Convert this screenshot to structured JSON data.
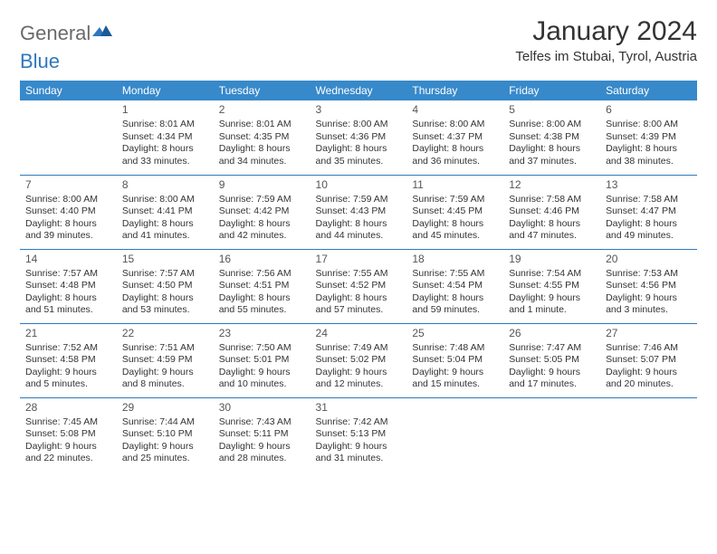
{
  "brand": {
    "part1": "General",
    "part2": "Blue"
  },
  "title": "January 2024",
  "subtitle": "Telfes im Stubai, Tyrol, Austria",
  "colors": {
    "header_bg": "#3789ca",
    "header_text": "#ffffff",
    "rule": "#2f78bd",
    "body_text": "#333333",
    "logo_gray": "#6a6a6a",
    "logo_blue": "#2f78bd",
    "page_bg": "#ffffff"
  },
  "weekdays": [
    "Sunday",
    "Monday",
    "Tuesday",
    "Wednesday",
    "Thursday",
    "Friday",
    "Saturday"
  ],
  "weeks": [
    [
      null,
      {
        "n": "1",
        "sr": "Sunrise: 8:01 AM",
        "ss": "Sunset: 4:34 PM",
        "d1": "Daylight: 8 hours",
        "d2": "and 33 minutes."
      },
      {
        "n": "2",
        "sr": "Sunrise: 8:01 AM",
        "ss": "Sunset: 4:35 PM",
        "d1": "Daylight: 8 hours",
        "d2": "and 34 minutes."
      },
      {
        "n": "3",
        "sr": "Sunrise: 8:00 AM",
        "ss": "Sunset: 4:36 PM",
        "d1": "Daylight: 8 hours",
        "d2": "and 35 minutes."
      },
      {
        "n": "4",
        "sr": "Sunrise: 8:00 AM",
        "ss": "Sunset: 4:37 PM",
        "d1": "Daylight: 8 hours",
        "d2": "and 36 minutes."
      },
      {
        "n": "5",
        "sr": "Sunrise: 8:00 AM",
        "ss": "Sunset: 4:38 PM",
        "d1": "Daylight: 8 hours",
        "d2": "and 37 minutes."
      },
      {
        "n": "6",
        "sr": "Sunrise: 8:00 AM",
        "ss": "Sunset: 4:39 PM",
        "d1": "Daylight: 8 hours",
        "d2": "and 38 minutes."
      }
    ],
    [
      {
        "n": "7",
        "sr": "Sunrise: 8:00 AM",
        "ss": "Sunset: 4:40 PM",
        "d1": "Daylight: 8 hours",
        "d2": "and 39 minutes."
      },
      {
        "n": "8",
        "sr": "Sunrise: 8:00 AM",
        "ss": "Sunset: 4:41 PM",
        "d1": "Daylight: 8 hours",
        "d2": "and 41 minutes."
      },
      {
        "n": "9",
        "sr": "Sunrise: 7:59 AM",
        "ss": "Sunset: 4:42 PM",
        "d1": "Daylight: 8 hours",
        "d2": "and 42 minutes."
      },
      {
        "n": "10",
        "sr": "Sunrise: 7:59 AM",
        "ss": "Sunset: 4:43 PM",
        "d1": "Daylight: 8 hours",
        "d2": "and 44 minutes."
      },
      {
        "n": "11",
        "sr": "Sunrise: 7:59 AM",
        "ss": "Sunset: 4:45 PM",
        "d1": "Daylight: 8 hours",
        "d2": "and 45 minutes."
      },
      {
        "n": "12",
        "sr": "Sunrise: 7:58 AM",
        "ss": "Sunset: 4:46 PM",
        "d1": "Daylight: 8 hours",
        "d2": "and 47 minutes."
      },
      {
        "n": "13",
        "sr": "Sunrise: 7:58 AM",
        "ss": "Sunset: 4:47 PM",
        "d1": "Daylight: 8 hours",
        "d2": "and 49 minutes."
      }
    ],
    [
      {
        "n": "14",
        "sr": "Sunrise: 7:57 AM",
        "ss": "Sunset: 4:48 PM",
        "d1": "Daylight: 8 hours",
        "d2": "and 51 minutes."
      },
      {
        "n": "15",
        "sr": "Sunrise: 7:57 AM",
        "ss": "Sunset: 4:50 PM",
        "d1": "Daylight: 8 hours",
        "d2": "and 53 minutes."
      },
      {
        "n": "16",
        "sr": "Sunrise: 7:56 AM",
        "ss": "Sunset: 4:51 PM",
        "d1": "Daylight: 8 hours",
        "d2": "and 55 minutes."
      },
      {
        "n": "17",
        "sr": "Sunrise: 7:55 AM",
        "ss": "Sunset: 4:52 PM",
        "d1": "Daylight: 8 hours",
        "d2": "and 57 minutes."
      },
      {
        "n": "18",
        "sr": "Sunrise: 7:55 AM",
        "ss": "Sunset: 4:54 PM",
        "d1": "Daylight: 8 hours",
        "d2": "and 59 minutes."
      },
      {
        "n": "19",
        "sr": "Sunrise: 7:54 AM",
        "ss": "Sunset: 4:55 PM",
        "d1": "Daylight: 9 hours",
        "d2": "and 1 minute."
      },
      {
        "n": "20",
        "sr": "Sunrise: 7:53 AM",
        "ss": "Sunset: 4:56 PM",
        "d1": "Daylight: 9 hours",
        "d2": "and 3 minutes."
      }
    ],
    [
      {
        "n": "21",
        "sr": "Sunrise: 7:52 AM",
        "ss": "Sunset: 4:58 PM",
        "d1": "Daylight: 9 hours",
        "d2": "and 5 minutes."
      },
      {
        "n": "22",
        "sr": "Sunrise: 7:51 AM",
        "ss": "Sunset: 4:59 PM",
        "d1": "Daylight: 9 hours",
        "d2": "and 8 minutes."
      },
      {
        "n": "23",
        "sr": "Sunrise: 7:50 AM",
        "ss": "Sunset: 5:01 PM",
        "d1": "Daylight: 9 hours",
        "d2": "and 10 minutes."
      },
      {
        "n": "24",
        "sr": "Sunrise: 7:49 AM",
        "ss": "Sunset: 5:02 PM",
        "d1": "Daylight: 9 hours",
        "d2": "and 12 minutes."
      },
      {
        "n": "25",
        "sr": "Sunrise: 7:48 AM",
        "ss": "Sunset: 5:04 PM",
        "d1": "Daylight: 9 hours",
        "d2": "and 15 minutes."
      },
      {
        "n": "26",
        "sr": "Sunrise: 7:47 AM",
        "ss": "Sunset: 5:05 PM",
        "d1": "Daylight: 9 hours",
        "d2": "and 17 minutes."
      },
      {
        "n": "27",
        "sr": "Sunrise: 7:46 AM",
        "ss": "Sunset: 5:07 PM",
        "d1": "Daylight: 9 hours",
        "d2": "and 20 minutes."
      }
    ],
    [
      {
        "n": "28",
        "sr": "Sunrise: 7:45 AM",
        "ss": "Sunset: 5:08 PM",
        "d1": "Daylight: 9 hours",
        "d2": "and 22 minutes."
      },
      {
        "n": "29",
        "sr": "Sunrise: 7:44 AM",
        "ss": "Sunset: 5:10 PM",
        "d1": "Daylight: 9 hours",
        "d2": "and 25 minutes."
      },
      {
        "n": "30",
        "sr": "Sunrise: 7:43 AM",
        "ss": "Sunset: 5:11 PM",
        "d1": "Daylight: 9 hours",
        "d2": "and 28 minutes."
      },
      {
        "n": "31",
        "sr": "Sunrise: 7:42 AM",
        "ss": "Sunset: 5:13 PM",
        "d1": "Daylight: 9 hours",
        "d2": "and 31 minutes."
      },
      null,
      null,
      null
    ]
  ]
}
